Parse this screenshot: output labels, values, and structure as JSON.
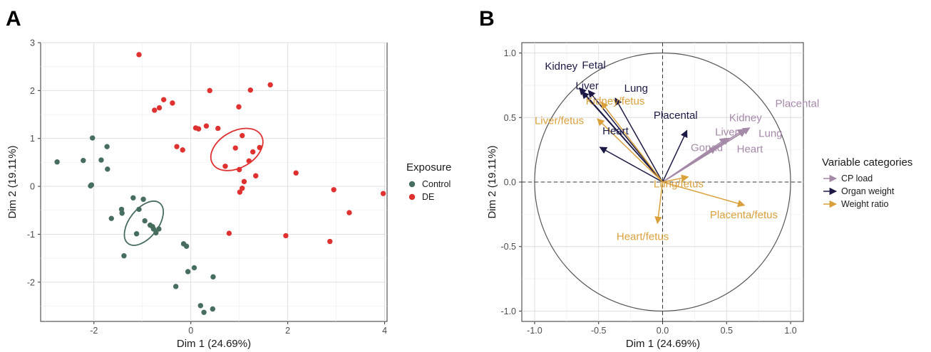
{
  "figure": {
    "panel_a_letter": "A",
    "panel_b_letter": "B"
  },
  "chart_data": [
    {
      "type": "scatter",
      "title": "",
      "xlabel": "Dim 1 (24.69%)",
      "ylabel": "Dim 2 (19.11%)",
      "xlim": [
        -3.1,
        4.05
      ],
      "ylim": [
        -2.82,
        3.0
      ],
      "xticks": [
        -2,
        0,
        2,
        4
      ],
      "yticks": [
        -2,
        -1,
        0,
        1,
        2,
        3
      ],
      "xtick_labels": [
        "-2",
        "0",
        "2",
        "4"
      ],
      "ytick_labels": [
        "-2",
        "-1",
        "0",
        "1",
        "2",
        "3"
      ],
      "grid": true,
      "legend": {
        "title": "Exposure",
        "placement": "right"
      },
      "series": [
        {
          "name": "Control",
          "color": "#466d5e",
          "ellipse": {
            "center": [
              -0.97,
              -0.77
            ],
            "rx": 0.53,
            "ry": 0.3,
            "angle_deg": -52
          },
          "points": [
            [
              -2.76,
              0.51
            ],
            [
              -2.22,
              0.54
            ],
            [
              -2.03,
              1.01
            ],
            [
              -2.05,
              0.03
            ],
            [
              -2.07,
              0.01
            ],
            [
              -1.85,
              0.55
            ],
            [
              -1.73,
              0.83
            ],
            [
              -1.72,
              0.36
            ],
            [
              -1.64,
              -0.67
            ],
            [
              -1.43,
              -0.48
            ],
            [
              -1.42,
              -0.56
            ],
            [
              -1.38,
              -1.45
            ],
            [
              -1.19,
              -0.24
            ],
            [
              -1.07,
              -0.48
            ],
            [
              -1.12,
              -0.99
            ],
            [
              -0.98,
              -0.27
            ],
            [
              -0.95,
              -0.72
            ],
            [
              -0.84,
              -0.81
            ],
            [
              -0.79,
              -0.84
            ],
            [
              -0.77,
              -0.89
            ],
            [
              -0.72,
              -0.97
            ],
            [
              -0.66,
              -0.89
            ],
            [
              -0.15,
              -1.2
            ],
            [
              -0.09,
              -1.25
            ],
            [
              -0.06,
              -1.78
            ],
            [
              0.07,
              -1.7
            ],
            [
              -0.31,
              -2.09
            ],
            [
              0.2,
              -2.49
            ],
            [
              0.27,
              -2.63
            ],
            [
              0.45,
              -2.56
            ],
            [
              0.46,
              -1.89
            ]
          ]
        },
        {
          "name": "DE",
          "color": "#e03131",
          "ellipse": {
            "center": [
              0.95,
              0.77
            ],
            "rx": 0.58,
            "ry": 0.38,
            "angle_deg": -30
          },
          "points": [
            [
              -1.07,
              2.75
            ],
            [
              -0.75,
              1.59
            ],
            [
              -0.65,
              1.64
            ],
            [
              -0.56,
              1.81
            ],
            [
              -0.38,
              1.74
            ],
            [
              -0.29,
              0.83
            ],
            [
              -0.17,
              0.76
            ],
            [
              0.1,
              1.22
            ],
            [
              0.16,
              1.2
            ],
            [
              0.39,
              2.0
            ],
            [
              0.32,
              1.26
            ],
            [
              0.56,
              1.21
            ],
            [
              0.71,
              0.42
            ],
            [
              0.79,
              -0.98
            ],
            [
              0.92,
              0.8
            ],
            [
              0.99,
              1.66
            ],
            [
              1.0,
              0.35
            ],
            [
              1.01,
              -0.12
            ],
            [
              1.06,
              1.06
            ],
            [
              1.06,
              -0.04
            ],
            [
              1.1,
              0.1
            ],
            [
              1.2,
              0.53
            ],
            [
              1.23,
              2.01
            ],
            [
              1.28,
              0.72
            ],
            [
              1.34,
              0.22
            ],
            [
              1.42,
              0.81
            ],
            [
              1.64,
              2.12
            ],
            [
              1.96,
              -1.03
            ],
            [
              2.17,
              0.28
            ],
            [
              2.87,
              -1.15
            ],
            [
              2.95,
              -0.07
            ],
            [
              3.27,
              -0.55
            ],
            [
              3.97,
              -0.15
            ]
          ]
        }
      ]
    },
    {
      "type": "scatter",
      "title": "",
      "xlabel": "Dim 1 (24.69%)",
      "ylabel": "Dim 2 (19.11%)",
      "xlim": [
        -1.1,
        1.1
      ],
      "ylim": [
        -1.08,
        1.08
      ],
      "xticks": [
        -1.0,
        -0.5,
        0.0,
        0.5,
        1.0
      ],
      "yticks": [
        -1.0,
        -0.5,
        0.0,
        0.5,
        1.0
      ],
      "xtick_labels": [
        "-1.0",
        "-0.5",
        "0.0",
        "0.5",
        "1.0"
      ],
      "ytick_labels": [
        "-1.0",
        "-0.5",
        "0.0",
        "0.5",
        "1.0"
      ],
      "grid": true,
      "unit_circle": true,
      "legend": {
        "title": "Variable categories",
        "placement": "right"
      },
      "categories": [
        {
          "name": "CP load",
          "color": "#a589a8"
        },
        {
          "name": "Organ weight",
          "color": "#1c1a45"
        },
        {
          "name": "Weight ratio",
          "color": "#d9a03c"
        }
      ],
      "vectors": [
        {
          "label": "Placental",
          "category": "CP load",
          "x": 0.68,
          "y": 0.42,
          "label_xy": [
            0.88,
            0.58
          ]
        },
        {
          "label": "Kidney",
          "category": "CP load",
          "x": 0.64,
          "y": 0.41,
          "label_xy": [
            0.52,
            0.47
          ]
        },
        {
          "label": "Lung",
          "category": "CP load",
          "x": 0.65,
          "y": 0.4,
          "label_xy": [
            0.75,
            0.35
          ]
        },
        {
          "label": "Liver",
          "category": "CP load",
          "x": 0.52,
          "y": 0.34,
          "label_xy": [
            0.41,
            0.36
          ]
        },
        {
          "label": "Gonad",
          "category": "CP load",
          "x": 0.42,
          "y": 0.27,
          "label_xy": [
            0.22,
            0.24
          ]
        },
        {
          "label": "Heart",
          "category": "CP load",
          "x": 0.5,
          "y": 0.34,
          "label_xy": [
            0.58,
            0.23
          ]
        },
        {
          "label": "Kidney",
          "category": "Organ weight",
          "x": -0.65,
          "y": 0.73,
          "label_xy": [
            -0.92,
            0.87
          ]
        },
        {
          "label": "Fetal",
          "category": "Organ weight",
          "x": -0.58,
          "y": 0.71,
          "label_xy": [
            -0.63,
            0.88
          ]
        },
        {
          "label": "Liver",
          "category": "Organ weight",
          "x": -0.63,
          "y": 0.7,
          "label_xy": [
            -0.68,
            0.72
          ]
        },
        {
          "label": "Lung",
          "category": "Organ weight",
          "x": -0.37,
          "y": 0.65,
          "label_xy": [
            -0.3,
            0.7
          ]
        },
        {
          "label": "Placental",
          "category": "Organ weight",
          "x": 0.19,
          "y": 0.4,
          "label_xy": [
            -0.07,
            0.49
          ]
        },
        {
          "label": "Heart",
          "category": "Organ weight",
          "x": -0.49,
          "y": 0.27,
          "label_xy": [
            -0.47,
            0.37
          ]
        },
        {
          "label": "Kidney/fetus",
          "category": "Weight ratio",
          "x": -0.48,
          "y": 0.62,
          "label_xy": [
            -0.6,
            0.6
          ]
        },
        {
          "label": "Liver/fetus",
          "category": "Weight ratio",
          "x": -0.51,
          "y": 0.49,
          "label_xy": [
            -1.0,
            0.45
          ]
        },
        {
          "label": "Lung/fetus",
          "category": "Weight ratio",
          "x": 0.2,
          "y": 0.04,
          "label_xy": [
            -0.07,
            -0.04
          ]
        },
        {
          "label": "Placenta/fetus",
          "category": "Weight ratio",
          "x": 0.64,
          "y": -0.18,
          "label_xy": [
            0.37,
            -0.28
          ]
        },
        {
          "label": "Heart/fetus",
          "category": "Weight ratio",
          "x": -0.04,
          "y": -0.32,
          "label_xy": [
            -0.36,
            -0.45
          ]
        }
      ]
    }
  ]
}
